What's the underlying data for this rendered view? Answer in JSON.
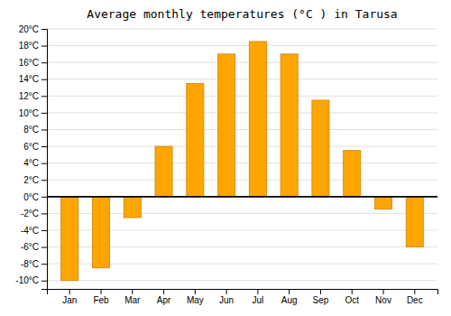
{
  "chart_data": {
    "type": "bar",
    "title": "Average monthly temperatures (°C ) in Tarusa",
    "categories": [
      "Jan",
      "Feb",
      "Mar",
      "Apr",
      "May",
      "Jun",
      "Jul",
      "Aug",
      "Sep",
      "Oct",
      "Nov",
      "Dec"
    ],
    "values": [
      -10,
      -8.5,
      -2.5,
      6,
      13.5,
      17,
      18.5,
      17,
      11.5,
      5.5,
      -1.5,
      -6
    ],
    "color": "#FFA500",
    "ylim": [
      -11,
      20
    ],
    "yticks": [
      {
        "value": -10,
        "label": "-10°C"
      },
      {
        "value": -8,
        "label": "-8°C"
      },
      {
        "value": -6,
        "label": "-6°C"
      },
      {
        "value": -4,
        "label": "-4°C"
      },
      {
        "value": -2,
        "label": "-2°C"
      },
      {
        "value": 0,
        "label": "0°C"
      },
      {
        "value": 2,
        "label": "2°C"
      },
      {
        "value": 4,
        "label": "4°C"
      },
      {
        "value": 6,
        "label": "6°C"
      },
      {
        "value": 8,
        "label": "8°C"
      },
      {
        "value": 10,
        "label": "10°C"
      },
      {
        "value": 12,
        "label": "12°C"
      },
      {
        "value": 14,
        "label": "14°C"
      },
      {
        "value": 16,
        "label": "16°C"
      },
      {
        "value": 18,
        "label": "18°C"
      },
      {
        "value": 20,
        "label": "20°C"
      }
    ],
    "grid": true
  }
}
